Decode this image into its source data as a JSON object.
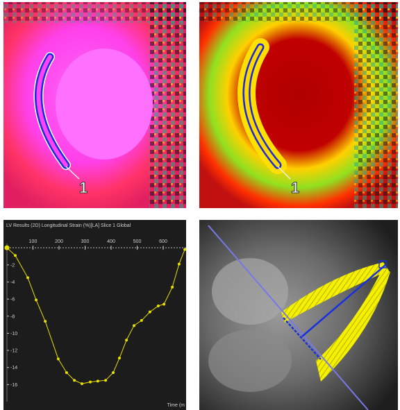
{
  "panels": [
    {
      "label": "1"
    },
    {
      "label": "1"
    }
  ],
  "chart_data": {
    "type": "line",
    "title": "LV Results (2D) Longitudinal Strain (%)[LA] Slice 1 Global",
    "x_label": "Time (m",
    "x": [
      0,
      32,
      80,
      112,
      147,
      197,
      229,
      259,
      288,
      320,
      349,
      379,
      408,
      432,
      459,
      488,
      517,
      549,
      581,
      603,
      635,
      661,
      683
    ],
    "values": [
      0,
      -0.9,
      -3.5,
      -6.1,
      -8.6,
      -13,
      -14.6,
      -15.5,
      -15.9,
      -15.7,
      -15.6,
      -15.5,
      -14.6,
      -12.9,
      -10.8,
      -9.1,
      -8.5,
      -7.5,
      -6.8,
      -6.6,
      -4.6,
      -1.9,
      -0.2
    ],
    "color": "#e8e000",
    "xlim": [
      0,
      688
    ],
    "xticks": [
      100,
      200,
      300,
      400,
      500,
      600
    ],
    "ylim": [
      -18,
      0.5
    ],
    "yticks": [
      -16,
      -14,
      -12,
      -10,
      -8,
      -6,
      -4,
      -2
    ],
    "grid": false
  }
}
